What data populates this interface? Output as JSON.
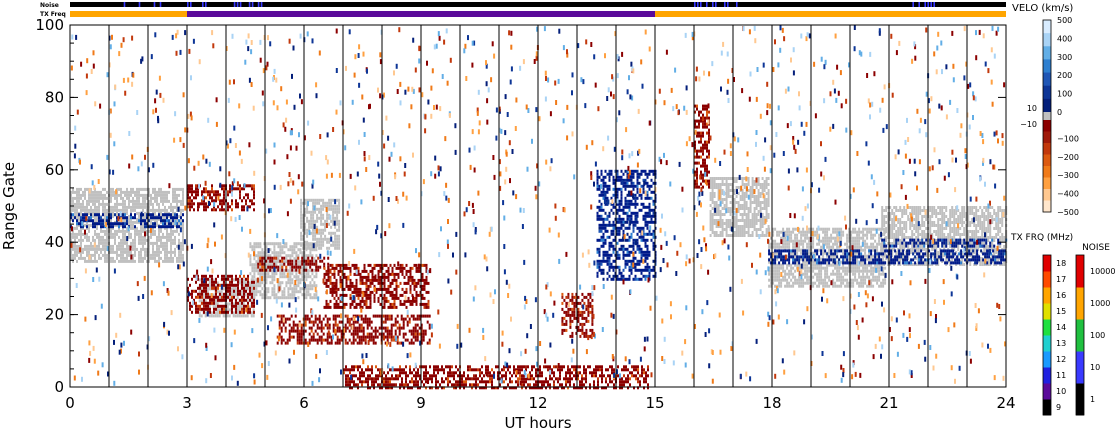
{
  "chart_data": {
    "type": "heatmap",
    "xlabel": "UT hours",
    "ylabel": "Range Gate",
    "xlim": [
      0,
      24
    ],
    "ylim": [
      0,
      100
    ],
    "x_ticks": [
      0,
      3,
      6,
      9,
      12,
      15,
      18,
      21,
      24
    ],
    "y_ticks": [
      0,
      20,
      40,
      60,
      80,
      100
    ],
    "scan_boundaries_hours": [
      1,
      2,
      3,
      4,
      5,
      6,
      7,
      8,
      9,
      10,
      11,
      12,
      13,
      14,
      15,
      16,
      17,
      18,
      19,
      20,
      21,
      22,
      23
    ],
    "noise_bar": {
      "label": "Noise",
      "color": "#000000",
      "elevated_intervals": [
        [
          1.3,
          2.4
        ],
        [
          3.0,
          3.6
        ],
        [
          4.2,
          4.9
        ],
        [
          16.0,
          17.2
        ],
        [
          21.6,
          22.2
        ]
      ],
      "elevated_color": "#3a3aff"
    },
    "tx_freq_bar": {
      "label": "TX Freq",
      "segments": [
        {
          "start": 0,
          "end": 3,
          "color": "#ffa500"
        },
        {
          "start": 3,
          "end": 15,
          "color": "#5a0a9a"
        },
        {
          "start": 15,
          "end": 24,
          "color": "#ffa500"
        }
      ]
    },
    "ground_scatter_color": "#c0c0c0",
    "ground_scatter_regions": [
      {
        "t0": 0.0,
        "t1": 2.9,
        "g0": 35,
        "g1": 55
      },
      {
        "t0": 3.3,
        "t1": 4.7,
        "g0": 20,
        "g1": 30
      },
      {
        "t0": 4.6,
        "t1": 6.3,
        "g0": 25,
        "g1": 40
      },
      {
        "t0": 5.9,
        "t1": 6.9,
        "g0": 38,
        "g1": 52
      },
      {
        "t0": 16.4,
        "t1": 17.9,
        "g0": 42,
        "g1": 58
      },
      {
        "t0": 17.9,
        "t1": 20.9,
        "g0": 28,
        "g1": 44
      },
      {
        "t0": 20.8,
        "t1": 24.0,
        "g0": 34,
        "g1": 50
      }
    ],
    "velocity_features": [
      {
        "t0": 0.0,
        "t1": 2.9,
        "g0": 44,
        "g1": 48,
        "color": "#001a8a"
      },
      {
        "t0": 3.0,
        "t1": 4.7,
        "g0": 21,
        "g1": 31,
        "color": "#8b0000"
      },
      {
        "t0": 3.0,
        "t1": 4.7,
        "g0": 49,
        "g1": 56,
        "color": "#8b0000"
      },
      {
        "t0": 4.8,
        "t1": 6.6,
        "g0": 32,
        "g1": 36,
        "color": "#8b0000"
      },
      {
        "t0": 6.5,
        "t1": 9.2,
        "g0": 22,
        "g1": 34,
        "color": "#8b0000"
      },
      {
        "t0": 5.3,
        "t1": 9.2,
        "g0": 12,
        "g1": 20,
        "color": "#8b0000"
      },
      {
        "t0": 7.0,
        "t1": 14.8,
        "g0": 0,
        "g1": 6,
        "color": "#8b0000"
      },
      {
        "t0": 12.6,
        "t1": 13.4,
        "g0": 14,
        "g1": 26,
        "color": "#8b0000"
      },
      {
        "t0": 13.5,
        "t1": 15.0,
        "g0": 30,
        "g1": 60,
        "color": "#001a8a"
      },
      {
        "t0": 16.0,
        "t1": 16.4,
        "g0": 55,
        "g1": 78,
        "color": "#8b0000"
      },
      {
        "t0": 17.9,
        "t1": 24.0,
        "g0": 34,
        "g1": 38,
        "color": "#001a8a"
      },
      {
        "t0": 20.8,
        "t1": 24.0,
        "g0": 39,
        "g1": 41,
        "color": "#001a8a"
      }
    ],
    "velocity_colorbar": {
      "title": "VELO (km/s)",
      "range": [
        -500,
        500
      ],
      "tick_values": [
        500,
        400,
        300,
        200,
        100,
        0,
        -100,
        -200,
        -300,
        -400,
        -500
      ],
      "tick_labels": [
        "500",
        "400",
        "300",
        "200",
        "100",
        "0",
        "−100",
        "−200",
        "−300",
        "−400",
        "−500"
      ],
      "ground_scatter_band_labels": [
        "10",
        "−10"
      ],
      "colors_top_to_bottom": [
        "#d8ecff",
        "#a9d3f5",
        "#62aee6",
        "#2d7fd0",
        "#1f56b5",
        "#0d3596",
        "#041f7a",
        "#8b0000",
        "#a01a0a",
        "#c2380c",
        "#dc5a10",
        "#f07a18",
        "#ffa040",
        "#ffc890",
        "#ffe6cc"
      ]
    },
    "txfreq_colorbar": {
      "title": "TX FRQ (MHz)",
      "tick_values": [
        9,
        10,
        11,
        12,
        13,
        14,
        15,
        16,
        17,
        18
      ],
      "tick_labels": [
        "9",
        "10",
        "11",
        "12",
        "13",
        "14",
        "15",
        "16",
        "17",
        "18"
      ],
      "colors_bottom_to_top": [
        "#000000",
        "#5a0a9a",
        "#2020e0",
        "#1a9aff",
        "#20d0d0",
        "#20e040",
        "#e0e000",
        "#ffa500",
        "#ff4a00",
        "#e00000"
      ]
    },
    "noise_colorbar": {
      "title": "NOISE",
      "tick_values": [
        1,
        10,
        100,
        1000,
        10000
      ],
      "tick_labels": [
        "1",
        "10",
        "100",
        "1000",
        "10000"
      ],
      "colors_bottom_to_top": [
        "#000000",
        "#3a3aff",
        "#20c040",
        "#ffa500",
        "#e00000"
      ]
    }
  }
}
